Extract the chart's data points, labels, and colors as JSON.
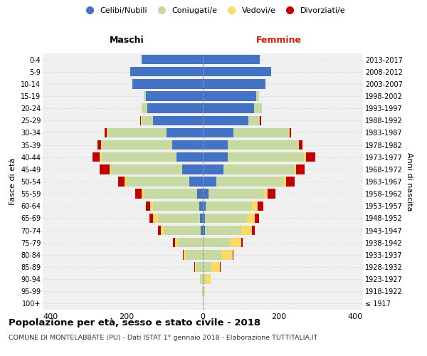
{
  "age_groups": [
    "100+",
    "95-99",
    "90-94",
    "85-89",
    "80-84",
    "75-79",
    "70-74",
    "65-69",
    "60-64",
    "55-59",
    "50-54",
    "45-49",
    "40-44",
    "35-39",
    "30-34",
    "25-29",
    "20-24",
    "15-19",
    "10-14",
    "5-9",
    "0-4"
  ],
  "birth_years": [
    "≤ 1917",
    "1918-1922",
    "1923-1927",
    "1928-1932",
    "1933-1937",
    "1938-1942",
    "1943-1947",
    "1948-1952",
    "1953-1957",
    "1958-1962",
    "1963-1967",
    "1968-1972",
    "1973-1977",
    "1978-1982",
    "1983-1987",
    "1988-1992",
    "1993-1997",
    "1998-2002",
    "2003-2007",
    "2008-2012",
    "2013-2017"
  ],
  "males": {
    "celibi": [
      0,
      0,
      0,
      0,
      0,
      0,
      5,
      8,
      10,
      15,
      35,
      55,
      70,
      80,
      95,
      130,
      145,
      150,
      185,
      190,
      160
    ],
    "coniugati": [
      0,
      2,
      5,
      18,
      45,
      65,
      95,
      110,
      120,
      140,
      165,
      185,
      195,
      185,
      155,
      30,
      15,
      5,
      0,
      0,
      0
    ],
    "vedovi": [
      0,
      0,
      2,
      3,
      5,
      8,
      10,
      12,
      8,
      5,
      5,
      5,
      5,
      2,
      2,
      2,
      0,
      0,
      0,
      0,
      0
    ],
    "divorziati": [
      0,
      0,
      0,
      2,
      2,
      5,
      8,
      10,
      12,
      18,
      18,
      25,
      20,
      10,
      5,
      3,
      0,
      0,
      0,
      0,
      0
    ]
  },
  "females": {
    "nubili": [
      0,
      0,
      0,
      0,
      0,
      0,
      5,
      5,
      8,
      15,
      35,
      55,
      65,
      65,
      80,
      120,
      135,
      140,
      165,
      180,
      150
    ],
    "coniugate": [
      0,
      2,
      8,
      22,
      48,
      70,
      95,
      110,
      120,
      145,
      175,
      185,
      200,
      185,
      145,
      30,
      20,
      8,
      0,
      0,
      0
    ],
    "vedove": [
      0,
      3,
      12,
      22,
      30,
      30,
      28,
      22,
      15,
      10,
      8,
      5,
      5,
      2,
      2,
      0,
      0,
      0,
      0,
      0,
      0
    ],
    "divorziate": [
      0,
      0,
      0,
      2,
      3,
      5,
      8,
      10,
      15,
      20,
      22,
      22,
      25,
      10,
      5,
      3,
      0,
      0,
      0,
      0,
      0
    ]
  },
  "colors": {
    "celibi": "#4472C4",
    "coniugati": "#c5d9a0",
    "vedovi": "#ffd966",
    "divorziati": "#c00000"
  },
  "xlim": 420,
  "title": "Popolazione per età, sesso e stato civile - 2018",
  "subtitle": "COMUNE DI MONTELABBATE (PU) - Dati ISTAT 1° gennaio 2018 - Elaborazione TUTTITALIA.IT",
  "ylabel_left": "Fasce di età",
  "ylabel_right": "Anni di nascita",
  "xlabel_maschi": "Maschi",
  "xlabel_femmine": "Femmine",
  "background_color": "#f0f0f0",
  "legend_labels": [
    "Celibi/Nubili",
    "Coniugati/e",
    "Vedovi/e",
    "Divorziati/e"
  ]
}
